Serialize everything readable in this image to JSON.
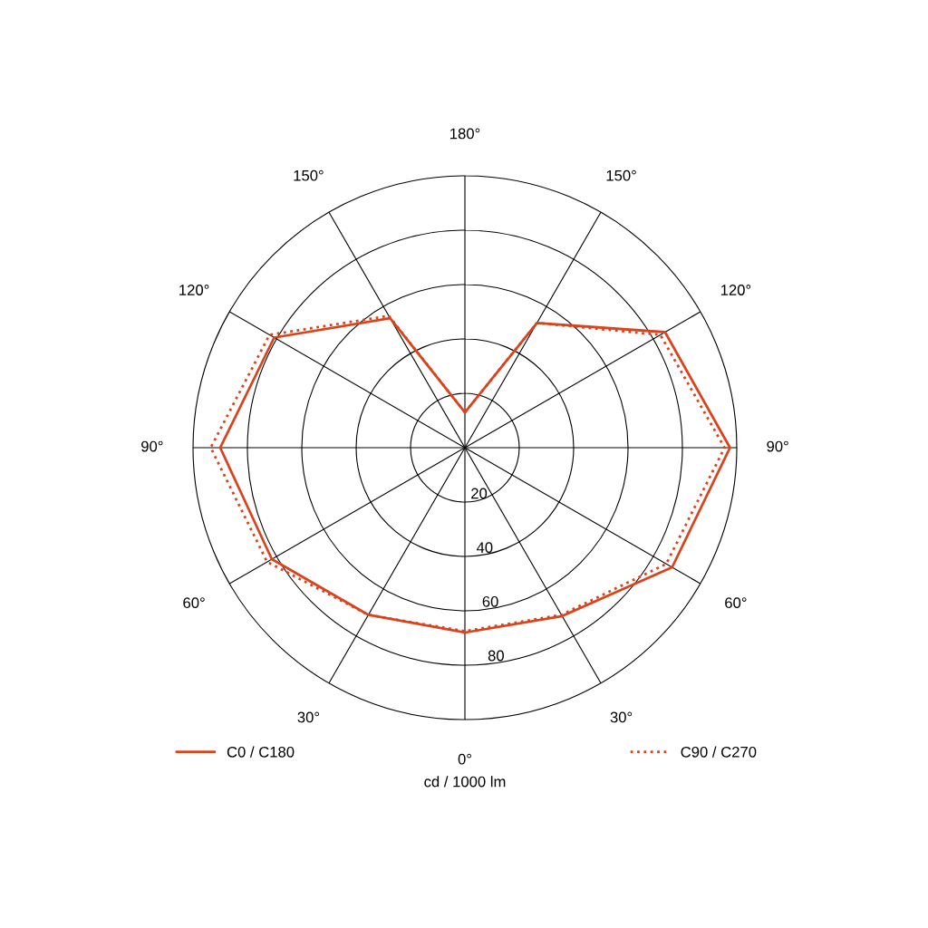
{
  "chart_data": {
    "type": "radar",
    "xlabel": "cd / 1000 lm",
    "categories": [
      "180°",
      "150°",
      "120°",
      "90°",
      "60°",
      "30°",
      "0°",
      "30°",
      "60°",
      "90°",
      "120°",
      "150°"
    ],
    "series": [
      {
        "name": "C0 / C180",
        "color": "#d9441c",
        "line_style": "solid",
        "values": [
          13,
          53,
          85,
          97.5,
          88,
          71.5,
          68,
          71,
          82,
          90,
          81,
          55
        ]
      },
      {
        "name": "C90 / C270",
        "color": "#d9441c",
        "line_style": "dotted",
        "values": [
          13,
          53,
          83,
          95.5,
          85.5,
          71,
          67.5,
          71,
          84,
          93.5,
          83,
          56
        ]
      }
    ],
    "ylim": [
      0,
      100
    ],
    "yticks": [
      20,
      40,
      60,
      80
    ],
    "grid": true,
    "legend": "bottom"
  }
}
